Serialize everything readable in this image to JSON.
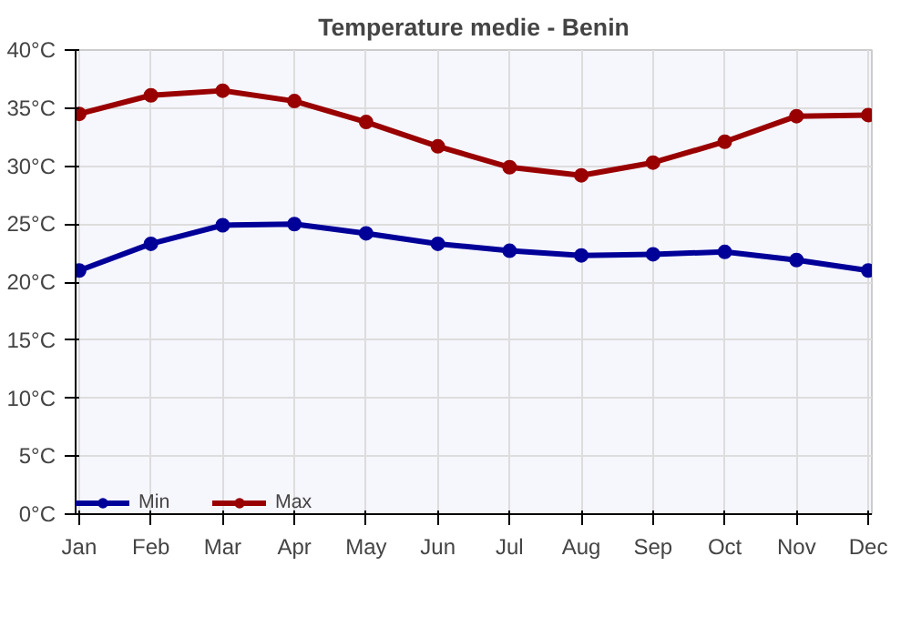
{
  "chart_data": {
    "type": "line",
    "title": "Temperature medie - Benin",
    "categories": [
      "Jan",
      "Feb",
      "Mar",
      "Apr",
      "May",
      "Jun",
      "Jul",
      "Aug",
      "Sep",
      "Oct",
      "Nov",
      "Dec"
    ],
    "series": [
      {
        "name": "Min",
        "color": "#000099",
        "values": [
          21.0,
          23.3,
          24.9,
          25.0,
          24.2,
          23.3,
          22.7,
          22.3,
          22.4,
          22.6,
          21.9,
          21.0
        ]
      },
      {
        "name": "Max",
        "color": "#990000",
        "values": [
          34.5,
          36.1,
          36.5,
          35.6,
          33.8,
          31.7,
          29.9,
          29.2,
          30.3,
          32.1,
          34.3,
          34.4
        ]
      }
    ],
    "ylim": [
      0,
      40
    ],
    "yticks": [
      {
        "value": 0,
        "label": "0°C"
      },
      {
        "value": 5,
        "label": "5°C"
      },
      {
        "value": 10,
        "label": "10°C"
      },
      {
        "value": 15,
        "label": "15°C"
      },
      {
        "value": 20,
        "label": "20°C"
      },
      {
        "value": 25,
        "label": "25°C"
      },
      {
        "value": 30,
        "label": "30°C"
      },
      {
        "value": 35,
        "label": "35°C"
      },
      {
        "value": 40,
        "label": "40°C"
      }
    ],
    "grid": true,
    "legend": "bottom left",
    "marker": "circle",
    "line_style": "solid"
  }
}
